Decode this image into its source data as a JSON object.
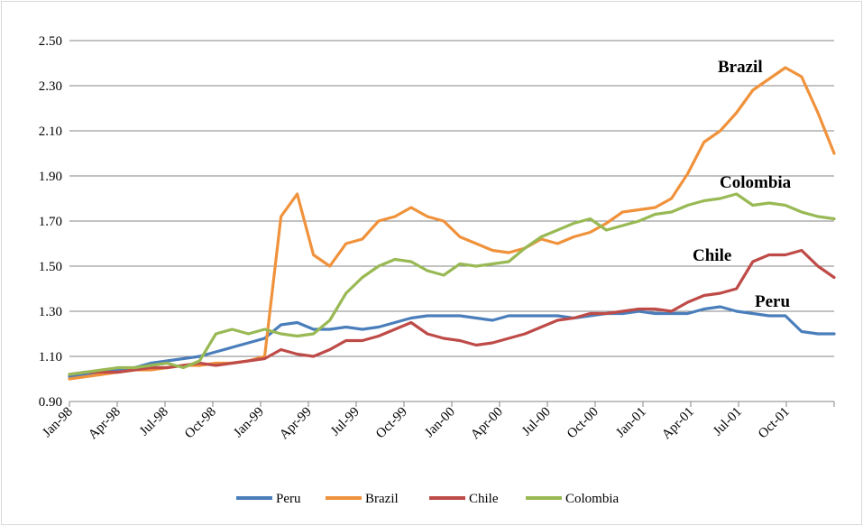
{
  "chart_data": {
    "type": "line",
    "title": "",
    "xlabel": "",
    "ylabel": "",
    "ylim": [
      0.9,
      2.5
    ],
    "yticks": [
      "0.90",
      "1.10",
      "1.30",
      "1.50",
      "1.70",
      "1.90",
      "2.10",
      "2.30",
      "2.50"
    ],
    "x_tick_labels": [
      "Jan-98",
      "Apr-98",
      "Jul-98",
      "Oct-98",
      "Jan-99",
      "Apr-99",
      "Jul-99",
      "Oct-99",
      "Jan-00",
      "Apr-00",
      "Jul-00",
      "Oct-00",
      "Jan-01",
      "Apr-01",
      "Jul-01",
      "Oct-01"
    ],
    "grid": "horizontal",
    "legend_position": "bottom",
    "x": [
      "Jan-98",
      "Feb-98",
      "Mar-98",
      "Apr-98",
      "May-98",
      "Jun-98",
      "Jul-98",
      "Aug-98",
      "Sep-98",
      "Oct-98",
      "Nov-98",
      "Dec-98",
      "Jan-99",
      "Feb-99",
      "Mar-99",
      "Apr-99",
      "May-99",
      "Jun-99",
      "Jul-99",
      "Aug-99",
      "Sep-99",
      "Oct-99",
      "Nov-99",
      "Dec-99",
      "Jan-00",
      "Feb-00",
      "Mar-00",
      "Apr-00",
      "May-00",
      "Jun-00",
      "Jul-00",
      "Aug-00",
      "Sep-00",
      "Oct-00",
      "Nov-00",
      "Dec-00",
      "Jan-01",
      "Feb-01",
      "Mar-01",
      "Apr-01",
      "May-01",
      "Jun-01",
      "Jul-01",
      "Aug-01",
      "Sep-01",
      "Oct-01",
      "Nov-01",
      "Dec-01"
    ],
    "series": [
      {
        "name": "Peru",
        "color": "#4a7ebb",
        "values": [
          1.01,
          1.02,
          1.03,
          1.04,
          1.05,
          1.07,
          1.08,
          1.09,
          1.1,
          1.12,
          1.14,
          1.16,
          1.18,
          1.24,
          1.25,
          1.22,
          1.22,
          1.23,
          1.22,
          1.23,
          1.25,
          1.27,
          1.28,
          1.28,
          1.28,
          1.27,
          1.26,
          1.28,
          1.28,
          1.28,
          1.28,
          1.27,
          1.28,
          1.29,
          1.29,
          1.3,
          1.29,
          1.29,
          1.29,
          1.31,
          1.32,
          1.3,
          1.29,
          1.28,
          1.28,
          1.21,
          1.2,
          1.2
        ]
      },
      {
        "name": "Brazil",
        "color": "#f0923b",
        "values": [
          1.0,
          1.01,
          1.02,
          1.03,
          1.04,
          1.04,
          1.05,
          1.06,
          1.06,
          1.07,
          1.07,
          1.08,
          1.1,
          1.72,
          1.82,
          1.55,
          1.5,
          1.6,
          1.62,
          1.7,
          1.72,
          1.76,
          1.72,
          1.7,
          1.63,
          1.6,
          1.57,
          1.56,
          1.58,
          1.62,
          1.6,
          1.63,
          1.65,
          1.69,
          1.74,
          1.75,
          1.76,
          1.8,
          1.91,
          2.05,
          2.1,
          2.18,
          2.28,
          2.33,
          2.38,
          2.34,
          2.18,
          2.0
        ]
      },
      {
        "name": "Chile",
        "color": "#be4b48",
        "values": [
          1.02,
          1.03,
          1.03,
          1.03,
          1.04,
          1.05,
          1.05,
          1.06,
          1.07,
          1.06,
          1.07,
          1.08,
          1.09,
          1.13,
          1.11,
          1.1,
          1.13,
          1.17,
          1.17,
          1.19,
          1.22,
          1.25,
          1.2,
          1.18,
          1.17,
          1.15,
          1.16,
          1.18,
          1.2,
          1.23,
          1.26,
          1.27,
          1.29,
          1.29,
          1.3,
          1.31,
          1.31,
          1.3,
          1.34,
          1.37,
          1.38,
          1.4,
          1.52,
          1.55,
          1.55,
          1.57,
          1.5,
          1.45
        ]
      },
      {
        "name": "Colombia",
        "color": "#98b954",
        "values": [
          1.02,
          1.03,
          1.04,
          1.05,
          1.05,
          1.06,
          1.07,
          1.05,
          1.08,
          1.2,
          1.22,
          1.2,
          1.22,
          1.2,
          1.19,
          1.2,
          1.26,
          1.38,
          1.45,
          1.5,
          1.53,
          1.52,
          1.48,
          1.46,
          1.51,
          1.5,
          1.51,
          1.52,
          1.58,
          1.63,
          1.66,
          1.69,
          1.71,
          1.66,
          1.68,
          1.7,
          1.73,
          1.74,
          1.77,
          1.79,
          1.8,
          1.82,
          1.77,
          1.78,
          1.77,
          1.74,
          1.72,
          1.71
        ]
      }
    ],
    "annotations": [
      {
        "text": "Brazil",
        "series": "Brazil"
      },
      {
        "text": "Colombia",
        "series": "Colombia"
      },
      {
        "text": "Chile",
        "series": "Chile"
      },
      {
        "text": "Peru",
        "series": "Peru"
      }
    ]
  }
}
